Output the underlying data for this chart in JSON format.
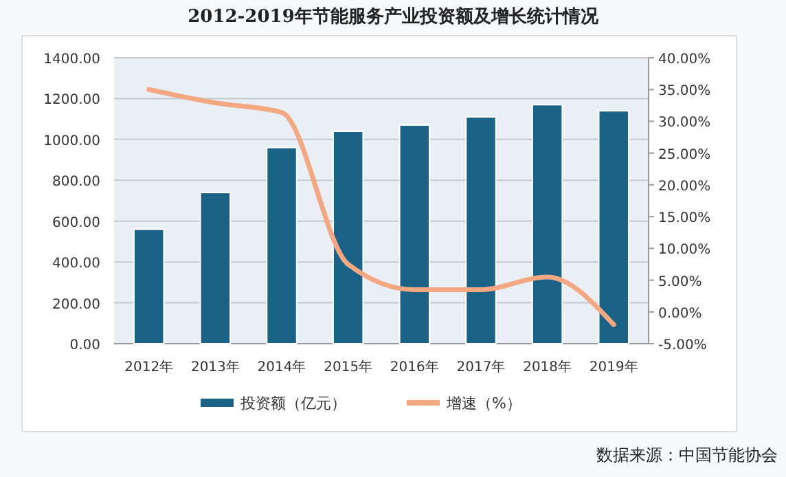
{
  "chart_data": {
    "type": "bar",
    "title": "2012-2019年节能服务产业投资额及增长统计情况",
    "categories": [
      "2012年",
      "2013年",
      "2014年",
      "2015年",
      "2016年",
      "2017年",
      "2018年",
      "2019年"
    ],
    "series": [
      {
        "name": "投资额（亿元）",
        "color": "#1b6386",
        "values": [
          560,
          740,
          960,
          1040,
          1070,
          1110,
          1170,
          1140
        ]
      },
      {
        "name": "增速（%）",
        "type": "line",
        "axis": "y2",
        "color": "#f4a882",
        "values": [
          35,
          32.9,
          31.4,
          7.5,
          3.5,
          3.5,
          5.5,
          -2
        ]
      }
    ],
    "ylim": [
      0,
      1400
    ],
    "yticks": [
      {
        "value": 0,
        "label": "0.00"
      },
      {
        "value": 200,
        "label": "200.00"
      },
      {
        "value": 400,
        "label": "400.00"
      },
      {
        "value": 600,
        "label": "600.00"
      },
      {
        "value": 800,
        "label": "800.00"
      },
      {
        "value": 1000,
        "label": "1000.00"
      },
      {
        "value": 1200,
        "label": "1200.00"
      },
      {
        "value": 1400,
        "label": "1400.00"
      }
    ],
    "y2lim": [
      -5,
      40
    ],
    "y2ticks": [
      {
        "value": -5,
        "label": "-5.00%"
      },
      {
        "value": 0,
        "label": "0.00%"
      },
      {
        "value": 5,
        "label": "5.00%"
      },
      {
        "value": 10,
        "label": "10.00%"
      },
      {
        "value": 15,
        "label": "15.00%"
      },
      {
        "value": 20,
        "label": "20.00%"
      },
      {
        "value": 25,
        "label": "25.00%"
      },
      {
        "value": 30,
        "label": "30.00%"
      },
      {
        "value": 35,
        "label": "35.00%"
      },
      {
        "value": 40,
        "label": "40.00%"
      }
    ],
    "grid": "y",
    "legend": "bottom",
    "marker": "none",
    "line_style": "solid",
    "annotations": [
      "数据来源：中国节能协会"
    ]
  }
}
